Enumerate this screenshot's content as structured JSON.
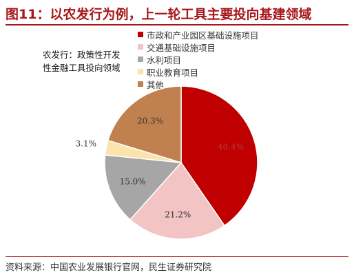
{
  "figure": {
    "title": "图11：以农发行为例，上一轮工具主要投向基建领域",
    "subtitle_lines": [
      "农发行：政策性开发",
      "性金融工具投向领域"
    ],
    "source": "资料来源：中国农业发展银行官网，民生证券研究院"
  },
  "chart_data": {
    "type": "pie",
    "series": [
      {
        "label": "市政和产业园区基础设施项目",
        "value": 40.4,
        "value_label": "40.4%",
        "color": "#c00000"
      },
      {
        "label": "交通基础设施项目",
        "value": 21.2,
        "value_label": "21.2%",
        "color": "#f2c4c4"
      },
      {
        "label": "水利项目",
        "value": 15.0,
        "value_label": "15.0%",
        "color": "#a6a6a6"
      },
      {
        "label": "职业教育项目",
        "value": 3.1,
        "value_label": "3.1%",
        "color": "#fbe3ad"
      },
      {
        "label": "其他",
        "value": 20.3,
        "value_label": "20.3%",
        "color": "#c0804f"
      }
    ],
    "legend_position": "top-right"
  }
}
